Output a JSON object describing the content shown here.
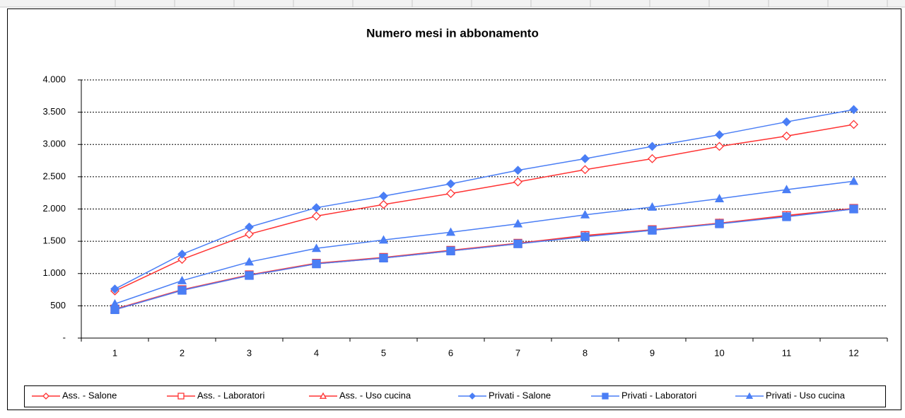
{
  "chart_data": {
    "type": "line",
    "title": "Numero mesi in abbonamento",
    "categories": [
      "1",
      "2",
      "3",
      "4",
      "5",
      "6",
      "7",
      "8",
      "9",
      "10",
      "11",
      "12"
    ],
    "ylim": [
      0,
      4000
    ],
    "yticks": [
      {
        "value": 0,
        "label": "-"
      },
      500,
      {
        "value": 1000,
        "label": "1.000"
      },
      {
        "value": 1500,
        "label": "1.500"
      },
      {
        "value": 2000,
        "label": "2.000"
      },
      {
        "value": 2500,
        "label": "2.500"
      },
      {
        "value": 3000,
        "label": "3.000"
      },
      {
        "value": 3500,
        "label": "3.500"
      },
      {
        "value": 4000,
        "label": "4.000"
      }
    ],
    "grid": true,
    "legend": "bottom",
    "series": [
      {
        "name": "Ass. - Salone",
        "color": "#ff3333",
        "marker": "diamond-open",
        "values": [
          730,
          1220,
          1610,
          1890,
          2070,
          2240,
          2420,
          2610,
          2780,
          2970,
          3130,
          3310
        ]
      },
      {
        "name": "Ass. - Laboratori",
        "color": "#ff3333",
        "marker": "square-open",
        "values": [
          450,
          750,
          980,
          1160,
          1250,
          1360,
          1470,
          1590,
          1680,
          1780,
          1900,
          2010
        ]
      },
      {
        "name": "Ass. - Uso cucina",
        "color": "#ff3333",
        "marker": "triangle-open",
        "values": [
          440,
          740,
          970,
          1150,
          1240,
          1350,
          1460,
          1580,
          1670,
          1780,
          1890,
          2000
        ]
      },
      {
        "name": "Privati - Salone",
        "color": "#4a7ef5",
        "marker": "diamond",
        "values": [
          760,
          1300,
          1720,
          2020,
          2200,
          2390,
          2600,
          2780,
          2970,
          3150,
          3350,
          3540
        ]
      },
      {
        "name": "Privati - Laboratori",
        "color": "#4a7ef5",
        "marker": "square",
        "values": [
          440,
          740,
          970,
          1150,
          1240,
          1350,
          1460,
          1570,
          1670,
          1770,
          1880,
          2000
        ]
      },
      {
        "name": "Privati - Uso cucina",
        "color": "#4a7ef5",
        "marker": "triangle",
        "values": [
          530,
          890,
          1180,
          1390,
          1520,
          1640,
          1770,
          1910,
          2030,
          2160,
          2300,
          2430
        ]
      }
    ]
  }
}
